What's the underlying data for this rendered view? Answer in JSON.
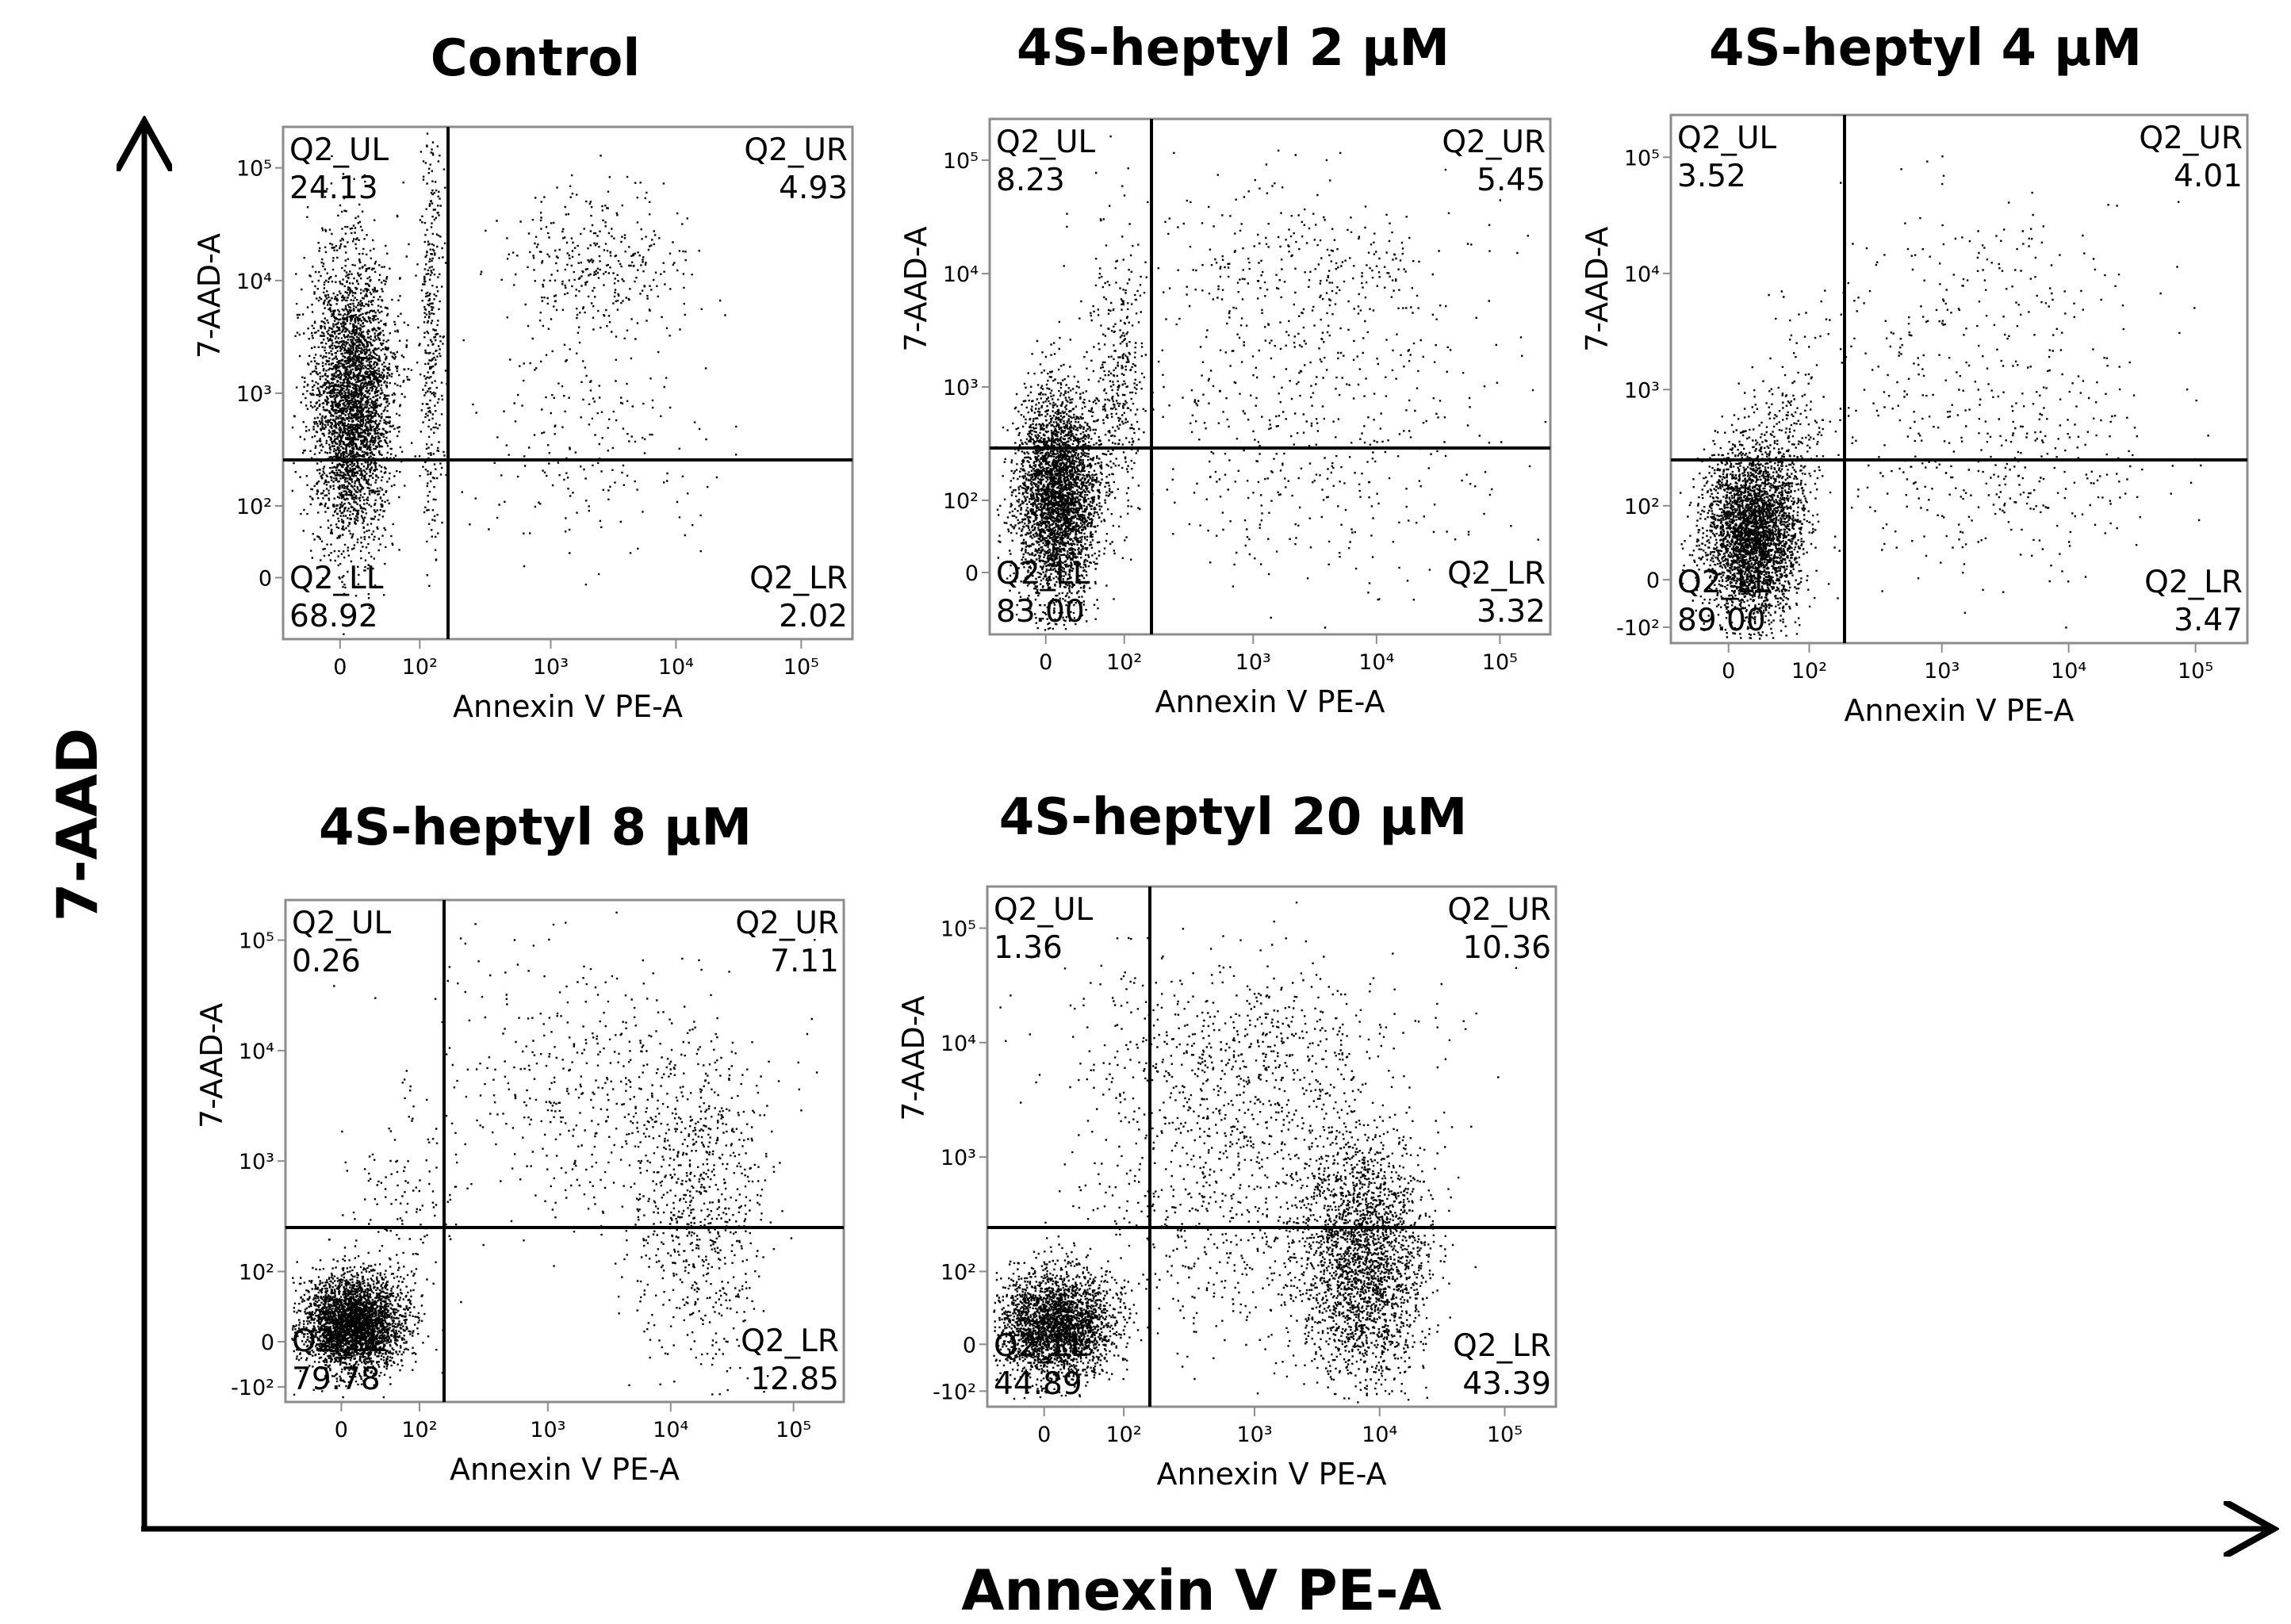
{
  "figure": {
    "y_axis_title": "7-AAD",
    "x_axis_title": "Annexin V PE-A"
  },
  "chart_data": [
    {
      "type": "scatter",
      "title": "Control",
      "xlabel": "Annexin V PE-A",
      "ylabel": "7-AAD-A",
      "x_ticks": [
        "0",
        "10²",
        "10³",
        "10⁴",
        "10⁵"
      ],
      "y_ticks": [
        "10⁵",
        "10⁴",
        "10³",
        "10²",
        "0"
      ],
      "quadrants": [
        {
          "name": "Q2_UL",
          "percent": "24.13"
        },
        {
          "name": "Q2_UR",
          "percent": "4.93"
        },
        {
          "name": "Q2_LL",
          "percent": "68.92"
        },
        {
          "name": "Q2_LR",
          "percent": "2.02"
        }
      ]
    },
    {
      "type": "scatter",
      "title": "4S-heptyl 2 µM",
      "xlabel": "Annexin V PE-A",
      "ylabel": "7-AAD-A",
      "x_ticks": [
        "0",
        "10²",
        "10³",
        "10⁴",
        "10⁵"
      ],
      "y_ticks": [
        "10⁵",
        "10⁴",
        "10³",
        "10²",
        "0"
      ],
      "quadrants": [
        {
          "name": "Q2_UL",
          "percent": "8.23"
        },
        {
          "name": "Q2_UR",
          "percent": "5.45"
        },
        {
          "name": "Q2_LL",
          "percent": "83.00"
        },
        {
          "name": "Q2_LR",
          "percent": "3.32"
        }
      ]
    },
    {
      "type": "scatter",
      "title": "4S-heptyl 4 µM",
      "xlabel": "Annexin V PE-A",
      "ylabel": "7-AAD-A",
      "x_ticks": [
        "0",
        "10²",
        "10³",
        "10⁴",
        "10⁵"
      ],
      "y_ticks": [
        "10⁵",
        "10⁴",
        "10³",
        "10²",
        "0",
        "-10²"
      ],
      "quadrants": [
        {
          "name": "Q2_UL",
          "percent": "3.52"
        },
        {
          "name": "Q2_UR",
          "percent": "4.01"
        },
        {
          "name": "Q2_LL",
          "percent": "89.00"
        },
        {
          "name": "Q2_LR",
          "percent": "3.47"
        }
      ]
    },
    {
      "type": "scatter",
      "title": "4S-heptyl 8 µM",
      "xlabel": "Annexin V PE-A",
      "ylabel": "7-AAD-A",
      "x_ticks": [
        "0",
        "10²",
        "10³",
        "10⁴",
        "10⁵"
      ],
      "y_ticks": [
        "10⁵",
        "10⁴",
        "10³",
        "10²",
        "0",
        "-10²"
      ],
      "quadrants": [
        {
          "name": "Q2_UL",
          "percent": "0.26"
        },
        {
          "name": "Q2_UR",
          "percent": "7.11"
        },
        {
          "name": "Q2_LL",
          "percent": "79.78"
        },
        {
          "name": "Q2_LR",
          "percent": "12.85"
        }
      ]
    },
    {
      "type": "scatter",
      "title": "4S-heptyl 20 µM",
      "xlabel": "Annexin V PE-A",
      "ylabel": "7-AAD-A",
      "x_ticks": [
        "0",
        "10²",
        "10³",
        "10⁴",
        "10⁵"
      ],
      "y_ticks": [
        "10⁵",
        "10⁴",
        "10³",
        "10²",
        "0",
        "-10²"
      ],
      "quadrants": [
        {
          "name": "Q2_UL",
          "percent": "1.36"
        },
        {
          "name": "Q2_UR",
          "percent": "10.36"
        },
        {
          "name": "Q2_LL",
          "percent": "44.89"
        },
        {
          "name": "Q2_LR",
          "percent": "43.39"
        }
      ]
    }
  ]
}
